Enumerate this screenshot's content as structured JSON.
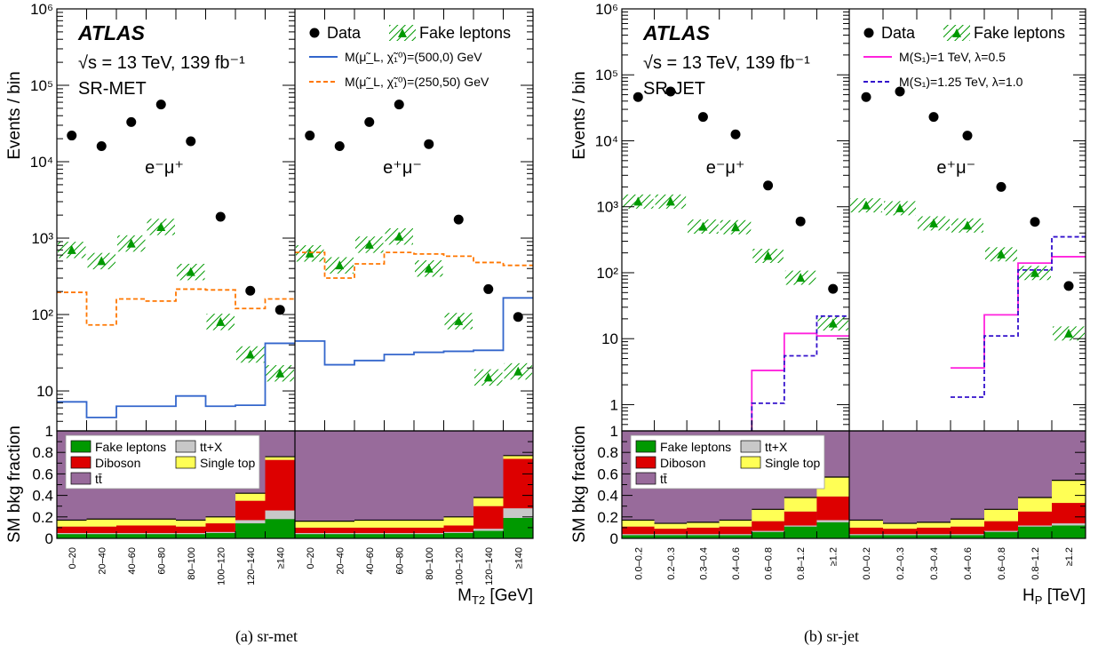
{
  "colors": {
    "fake": "#009900",
    "fake_hatch": "#009900",
    "diboson": "#dd0000",
    "ttx": "#c8c8c8",
    "singletop": "#ffff55",
    "ttbar": "#986b9b",
    "signal_a1": "#3366cc",
    "signal_a2": "#ff7700",
    "signal_b1": "#ff22dd",
    "signal_b2": "#3311cc",
    "data": "#000000"
  },
  "panels": [
    {
      "caption": "(a) sr-met",
      "region_label": "SR-MET",
      "experiment": "ATLAS",
      "energy_lumi": "√s = 13 TeV, 139 fb⁻¹",
      "channel_left": "e⁻μ⁺",
      "channel_right": "e⁺μ⁻",
      "ylabel_top": "Events / bin",
      "ylabel_bottom": "SM bkg fraction",
      "xlabel": "M_T2 [GeV]",
      "xlabel_main": "M",
      "xlabel_sub": "T2",
      "xlabel_unit": " [GeV]",
      "legend_data": "Data",
      "legend_fake": "Fake leptons",
      "signals": [
        {
          "label": "M(μ̃_L, χ̃₁⁰)=(500,0) GeV",
          "style": "solid"
        },
        {
          "label": "M(μ̃_L, χ̃₁⁰)=(250,50) GeV",
          "style": "dashed"
        }
      ],
      "ytick_labels": [
        "10",
        "10²",
        "10³",
        "10⁴",
        "10⁵",
        "10⁶"
      ],
      "fraction_ticks": [
        "0",
        "0.2",
        "0.4",
        "0.6",
        "0.8",
        "1"
      ],
      "fraction_legend": [
        "Fake leptons",
        "tt+X",
        "Diboson",
        "Single top",
        "tt̄"
      ]
    },
    {
      "caption": "(b) sr-jet",
      "region_label": "SR-JET",
      "experiment": "ATLAS",
      "energy_lumi": "√s = 13 TeV, 139 fb⁻¹",
      "channel_left": "e⁻μ⁺",
      "channel_right": "e⁺μ⁻",
      "ylabel_top": "Events / bin",
      "ylabel_bottom": "SM bkg fraction",
      "xlabel": "H_P [TeV]",
      "xlabel_main": "H",
      "xlabel_sub": "P",
      "xlabel_unit": " [TeV]",
      "legend_data": "Data",
      "legend_fake": "Fake leptons",
      "signals": [
        {
          "label": "M(S₁)=1 TeV, λ=0.5",
          "style": "solid"
        },
        {
          "label": "M(S₁)=1.25 TeV, λ=1.0",
          "style": "dashed"
        }
      ],
      "ytick_labels": [
        "1",
        "10",
        "10²",
        "10³",
        "10⁴",
        "10⁵",
        "10⁶"
      ],
      "fraction_ticks": [
        "0",
        "0.2",
        "0.4",
        "0.6",
        "0.8",
        "1"
      ],
      "fraction_legend": [
        "Fake leptons",
        "tt+X",
        "Diboson",
        "Single top",
        "tt̄"
      ]
    }
  ],
  "chart_data": [
    {
      "type": "bar",
      "title": "SR-MET",
      "xlabel": "M_T2 [GeV]",
      "ylabel": "Events / bin",
      "yscale": "log",
      "ylim": [
        3,
        1000000
      ],
      "categories": [
        "0–20",
        "20–40",
        "40–60",
        "60–80",
        "80–100",
        "100–120",
        "120–140",
        "≥140"
      ],
      "subpanels": [
        "e⁻μ⁺",
        "e⁺μ⁻"
      ],
      "series": [
        {
          "name": "Data",
          "kind": "points",
          "left": [
            22000,
            16000,
            33000,
            56000,
            18500,
            1900,
            205,
            115
          ],
          "right": [
            22000,
            16000,
            33000,
            56000,
            17000,
            1750,
            215,
            93
          ]
        },
        {
          "name": "Fake leptons",
          "kind": "hatched_band",
          "left": [
            700,
            500,
            850,
            1400,
            360,
            80,
            30,
            17
          ],
          "right": [
            630,
            440,
            820,
            1050,
            400,
            82,
            15,
            18
          ]
        },
        {
          "name": "M(μ̃_L, χ̃₁⁰)=(500,0) GeV",
          "kind": "step",
          "left": [
            7.2,
            4.5,
            6.3,
            6.3,
            8.6,
            6.3,
            6.5,
            42
          ],
          "right": [
            45,
            22,
            25,
            30,
            32,
            33,
            34,
            165
          ]
        },
        {
          "name": "M(μ̃_L, χ̃₁⁰)=(250,50) GeV",
          "kind": "step",
          "left": [
            195,
            73,
            160,
            150,
            215,
            210,
            120,
            160
          ],
          "right": [
            650,
            300,
            460,
            650,
            620,
            580,
            480,
            440
          ]
        }
      ],
      "fraction": {
        "ylim": [
          0,
          1
        ],
        "ylabel": "SM bkg fraction",
        "stack_order": [
          "Fake leptons",
          "tt+X",
          "Diboson",
          "Single top",
          "tt̄"
        ],
        "left": {
          "Fake leptons": [
            0.04,
            0.04,
            0.04,
            0.04,
            0.04,
            0.05,
            0.14,
            0.18
          ],
          "tt+X": [
            0.01,
            0.01,
            0.01,
            0.01,
            0.01,
            0.01,
            0.03,
            0.08
          ],
          "Diboson": [
            0.06,
            0.06,
            0.07,
            0.07,
            0.06,
            0.08,
            0.18,
            0.47
          ],
          "Single top": [
            0.06,
            0.07,
            0.06,
            0.06,
            0.06,
            0.06,
            0.07,
            0.03
          ]
        },
        "right": {
          "Fake leptons": [
            0.04,
            0.04,
            0.04,
            0.04,
            0.04,
            0.05,
            0.07,
            0.19
          ],
          "tt+X": [
            0.01,
            0.01,
            0.01,
            0.01,
            0.01,
            0.01,
            0.02,
            0.09
          ],
          "Diboson": [
            0.05,
            0.05,
            0.05,
            0.05,
            0.05,
            0.06,
            0.21,
            0.46
          ],
          "Single top": [
            0.06,
            0.06,
            0.07,
            0.07,
            0.07,
            0.08,
            0.08,
            0.03
          ]
        }
      }
    },
    {
      "type": "bar",
      "title": "SR-JET",
      "xlabel": "H_P [TeV]",
      "ylabel": "Events / bin",
      "yscale": "log",
      "ylim": [
        0.4,
        1000000
      ],
      "categories": [
        "0.0–0.2",
        "0.2–0.3",
        "0.3–0.4",
        "0.4–0.6",
        "0.6–0.8",
        "0.8–1.2",
        "≥1.2"
      ],
      "subpanels": [
        "e⁻μ⁺",
        "e⁺μ⁻"
      ],
      "series": [
        {
          "name": "Data",
          "kind": "points",
          "left": [
            46000,
            56000,
            23000,
            12500,
            2100,
            600,
            57
          ],
          "right": [
            46000,
            56000,
            23000,
            12000,
            2000,
            590,
            63
          ]
        },
        {
          "name": "Fake leptons",
          "kind": "hatched_band",
          "left": [
            1200,
            1200,
            500,
            490,
            180,
            84,
            17
          ],
          "right": [
            1050,
            950,
            560,
            520,
            190,
            99,
            12
          ]
        },
        {
          "name": "M(S₁)=1 TeV, λ=0.5",
          "kind": "step",
          "left": [
            null,
            null,
            null,
            0.1,
            3.3,
            12,
            11
          ],
          "right": [
            null,
            null,
            null,
            3.6,
            23,
            140,
            175
          ]
        },
        {
          "name": "M(S₁)=1.25 TeV, λ=1.0",
          "kind": "step",
          "left": [
            null,
            null,
            null,
            0.1,
            1.05,
            5.5,
            22
          ],
          "right": [
            null,
            null,
            null,
            1.3,
            11,
            110,
            350
          ]
        }
      ],
      "fraction": {
        "ylim": [
          0,
          1
        ],
        "ylabel": "SM bkg fraction",
        "stack_order": [
          "Fake leptons",
          "tt+X",
          "Diboson",
          "Single top",
          "tt̄"
        ],
        "left": {
          "Fake leptons": [
            0.03,
            0.03,
            0.03,
            0.03,
            0.06,
            0.11,
            0.15
          ],
          "tt+X": [
            0.01,
            0.01,
            0.01,
            0.01,
            0.01,
            0.01,
            0.02
          ],
          "Diboson": [
            0.07,
            0.05,
            0.06,
            0.07,
            0.09,
            0.13,
            0.22
          ],
          "Single top": [
            0.06,
            0.05,
            0.05,
            0.06,
            0.11,
            0.13,
            0.18
          ]
        },
        "right": {
          "Fake leptons": [
            0.03,
            0.03,
            0.03,
            0.03,
            0.06,
            0.11,
            0.12
          ],
          "tt+X": [
            0.01,
            0.01,
            0.01,
            0.01,
            0.01,
            0.01,
            0.02
          ],
          "Diboson": [
            0.06,
            0.05,
            0.06,
            0.07,
            0.09,
            0.13,
            0.19
          ],
          "Single top": [
            0.07,
            0.05,
            0.05,
            0.07,
            0.11,
            0.13,
            0.21
          ]
        }
      }
    }
  ]
}
